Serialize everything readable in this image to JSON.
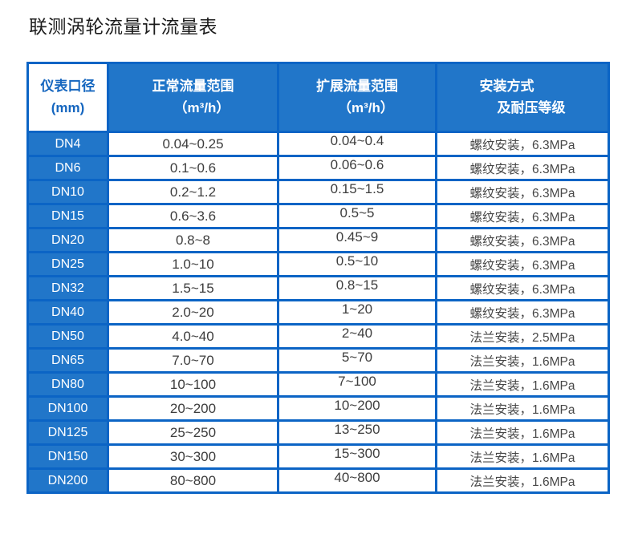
{
  "page": {
    "title": "联测涡轮流量计流量表"
  },
  "colors": {
    "cell_blue": "#2176C9",
    "grid_blue": "#0B64C5",
    "header_col1_text_blue": "#1566BF",
    "body_text": "#3D3D3D",
    "title_text": "#1C1C1C"
  },
  "table": {
    "header": {
      "col1": {
        "line1": "仪表口径",
        "line2": "(mm)"
      },
      "col2": {
        "line1": "正常流量范围",
        "line2": "（m³/h）"
      },
      "col3": {
        "line1": "扩展流量范围",
        "line2": "（m³/h）"
      },
      "col4": {
        "line1": "安装方式",
        "line2": "及耐压等级"
      }
    },
    "rows": [
      {
        "dn": "DN4",
        "normal": "0.04~0.25",
        "extended": "0.04~0.4",
        "install": "螺纹安装，6.3MPa"
      },
      {
        "dn": "DN6",
        "normal": "0.1~0.6",
        "extended": "0.06~0.6",
        "install": "螺纹安装，6.3MPa"
      },
      {
        "dn": "DN10",
        "normal": "0.2~1.2",
        "extended": "0.15~1.5",
        "install": "螺纹安装，6.3MPa"
      },
      {
        "dn": "DN15",
        "normal": "0.6~3.6",
        "extended": "0.5~5",
        "install": "螺纹安装，6.3MPa"
      },
      {
        "dn": "DN20",
        "normal": "0.8~8",
        "extended": "0.45~9",
        "install": "螺纹安装，6.3MPa"
      },
      {
        "dn": "DN25",
        "normal": "1.0~10",
        "extended": "0.5~10",
        "install": "螺纹安装，6.3MPa"
      },
      {
        "dn": "DN32",
        "normal": "1.5~15",
        "extended": "0.8~15",
        "install": "螺纹安装，6.3MPa"
      },
      {
        "dn": "DN40",
        "normal": "2.0~20",
        "extended": "1~20",
        "install": "螺纹安装，6.3MPa"
      },
      {
        "dn": "DN50",
        "normal": "4.0~40",
        "extended": "2~40",
        "install": "法兰安装，2.5MPa"
      },
      {
        "dn": "DN65",
        "normal": "7.0~70",
        "extended": "5~70",
        "install": "法兰安装，1.6MPa"
      },
      {
        "dn": "DN80",
        "normal": "10~100",
        "extended": "7~100",
        "install": "法兰安装，1.6MPa"
      },
      {
        "dn": "DN100",
        "normal": "20~200",
        "extended": "10~200",
        "install": "法兰安装，1.6MPa"
      },
      {
        "dn": "DN125",
        "normal": "25~250",
        "extended": "13~250",
        "install": "法兰安装，1.6MPa"
      },
      {
        "dn": "DN150",
        "normal": "30~300",
        "extended": "15~300",
        "install": "法兰安装，1.6MPa"
      },
      {
        "dn": "DN200",
        "normal": "80~800",
        "extended": "40~800",
        "install": "法兰安装，1.6MPa"
      }
    ]
  }
}
